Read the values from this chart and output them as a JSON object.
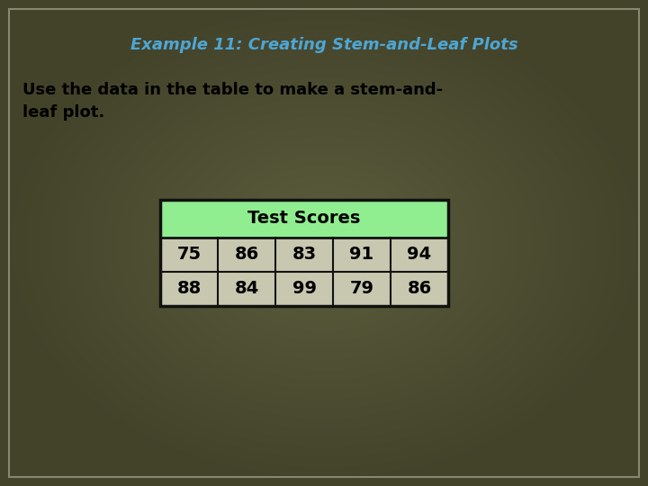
{
  "title": "Example 11: Creating Stem-and-Leaf Plots",
  "title_color": "#4da6d4",
  "body_text_line1": "Use the data in the table to make a stem-and-",
  "body_text_line2": "leaf plot.",
  "body_color": "#000000",
  "background_color": "#5c5c3d",
  "table_header": "Test Scores",
  "table_header_bg": "#90ee90",
  "table_data": [
    [
      "75",
      "86",
      "83",
      "91",
      "94"
    ],
    [
      "88",
      "84",
      "99",
      "79",
      "86"
    ]
  ],
  "table_data_bg": "#c8c8b0",
  "table_border_color": "#111111",
  "outer_border_color": "#888870",
  "figsize": [
    7.2,
    5.4
  ],
  "dpi": 100
}
